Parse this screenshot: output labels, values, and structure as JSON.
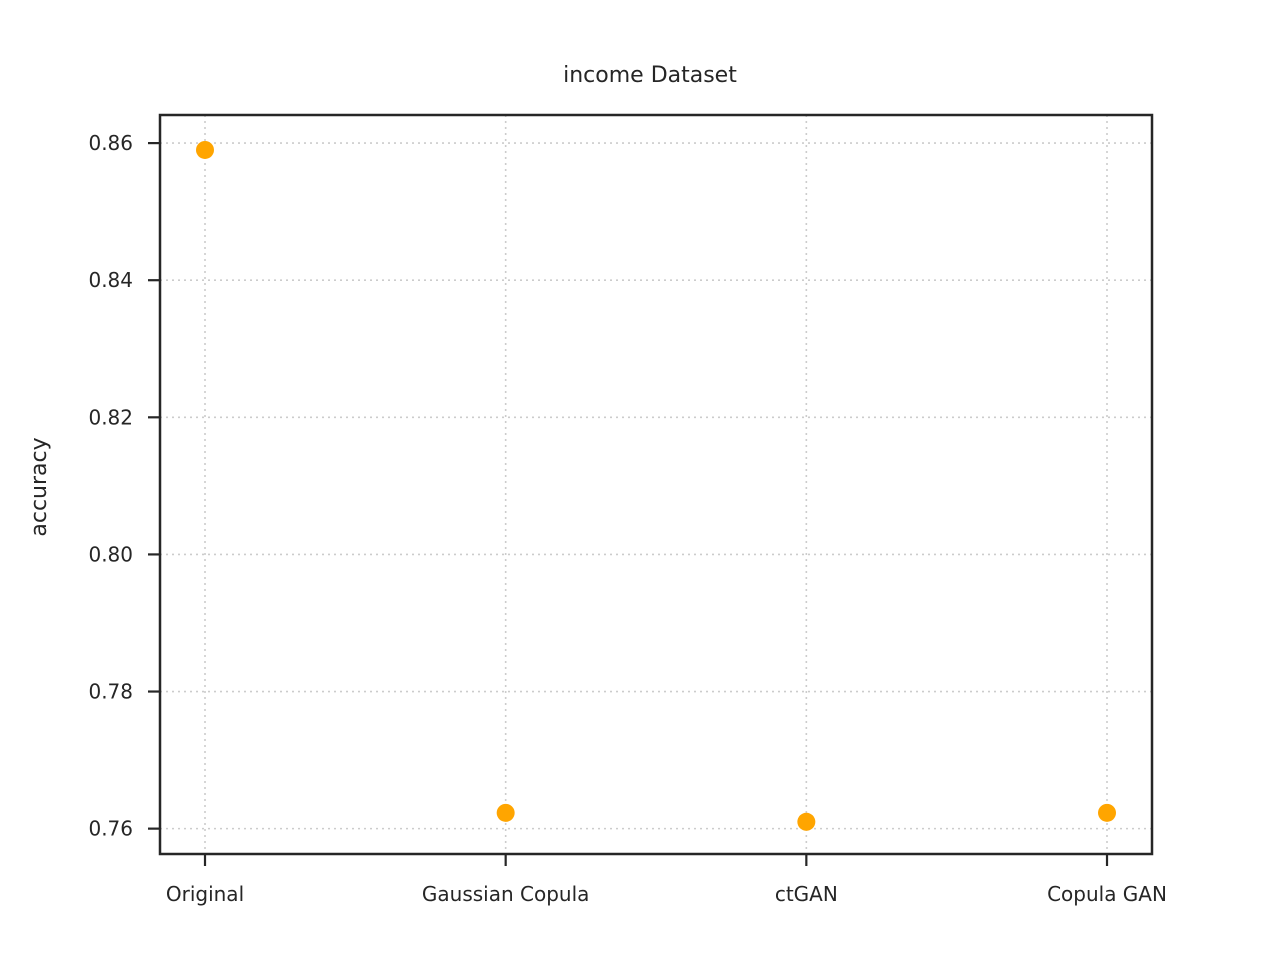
{
  "chart_data": {
    "type": "scatter",
    "title": "income Dataset",
    "xlabel": "",
    "ylabel": "accuracy",
    "categories": [
      "Original",
      "Gaussian Copula",
      "ctGAN",
      "Copula GAN"
    ],
    "series": [
      {
        "values": [
          0.859,
          0.7623,
          0.761,
          0.7623
        ]
      }
    ],
    "ylim": [
      0.7563,
      0.8641
    ],
    "yticks": [
      0.76,
      0.78,
      0.8,
      0.82,
      0.84,
      0.86
    ],
    "ytick_labels": [
      "0.76",
      "0.78",
      "0.80",
      "0.82",
      "0.84",
      "0.86"
    ],
    "grid": true,
    "marker_color": "#FFA500",
    "axis_color": "#262626",
    "grid_color": "#CCCCCC"
  }
}
